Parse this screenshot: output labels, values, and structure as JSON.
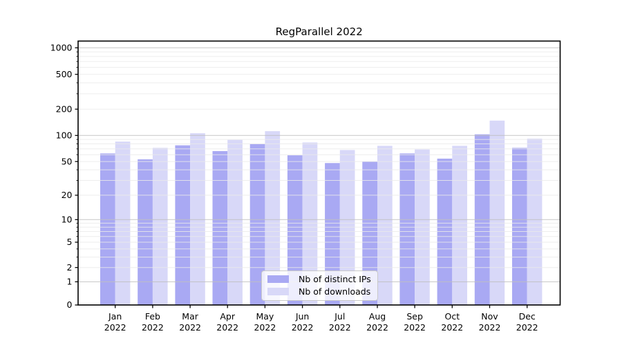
{
  "chart_data": {
    "type": "bar",
    "title": "RegParallel 2022",
    "months": [
      "Jan",
      "Feb",
      "Mar",
      "Apr",
      "May",
      "Jun",
      "Jul",
      "Aug",
      "Sep",
      "Oct",
      "Nov",
      "Dec"
    ],
    "year": "2022",
    "categories": [
      "Jan 2022",
      "Feb 2022",
      "Mar 2022",
      "Apr 2022",
      "May 2022",
      "Jun 2022",
      "Jul 2022",
      "Aug 2022",
      "Sep 2022",
      "Oct 2022",
      "Nov 2022",
      "Dec 2022"
    ],
    "series": [
      {
        "name": "Nb of distinct IPs",
        "color": "#a9a9f3",
        "values": [
          62,
          53,
          77,
          66,
          80,
          59,
          48,
          50,
          62,
          54,
          103,
          72
        ]
      },
      {
        "name": "Nb of downloads",
        "color": "#d8d8f8",
        "values": [
          85,
          72,
          106,
          89,
          112,
          83,
          68,
          76,
          69,
          76,
          148,
          92
        ]
      }
    ],
    "y_ticks_labeled": [
      0,
      1,
      2,
      5,
      10,
      20,
      50,
      100,
      200,
      500,
      1000
    ],
    "y_scale": "pseudo-log (symlog-like, linear near 0)",
    "ylim": [
      0,
      1200
    ],
    "xlabel": "",
    "ylabel": "",
    "grid": {
      "orientation": "horizontal",
      "major_values": [
        1,
        10,
        100,
        1000
      ],
      "minor": "2-9 within each decade"
    },
    "legend_position": "lower center"
  },
  "colors": {
    "axis": "#000000",
    "major_grid": "#bfbfbf",
    "minor_grid": "#eaeaea",
    "background": "#ffffff",
    "text": "#000000"
  }
}
